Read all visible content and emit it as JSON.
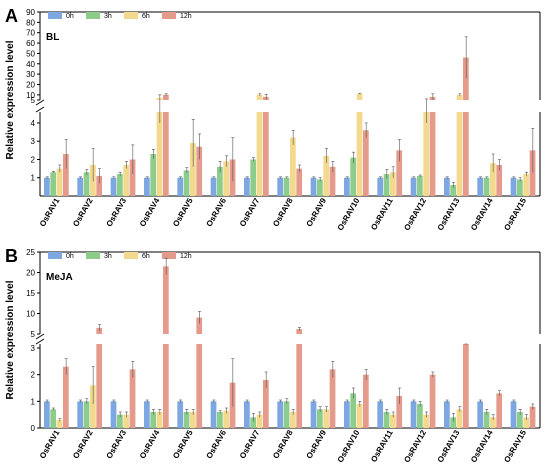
{
  "figure": {
    "colors": {
      "0h": "#7ea6e0",
      "3h": "#8ccd8c",
      "6h": "#f2d98d",
      "12h": "#e59b8c"
    },
    "axis_color": "#000000",
    "grid": false
  },
  "chart_data": [
    {
      "type": "bar",
      "panel_label": "A",
      "condition_label": "BL",
      "ylabel": "Relative expression level",
      "yscale": "broken",
      "ylim": [
        0,
        90
      ],
      "y_ticks_lower": [
        "1",
        "2",
        "3",
        "4"
      ],
      "y_ticks_upper": [
        "5",
        "10",
        "20",
        "30",
        "40",
        "50",
        "60",
        "70",
        "80",
        "90"
      ],
      "legend_position": "top-left",
      "categories": [
        "OsRAV1",
        "OsRAV2",
        "OsRAV3",
        "OsRAV4",
        "OsRAV5",
        "OsRAV6",
        "OsRAV7",
        "OsRAV8",
        "OsRAV9",
        "OsRAV10",
        "OsRAV11",
        "OsRAV12",
        "OsRAV13",
        "OsRAV14",
        "OsRAV15"
      ],
      "series": [
        {
          "name": "0h",
          "values": [
            1,
            1,
            1,
            1,
            1,
            1,
            1,
            1,
            1,
            1,
            1,
            1,
            1,
            1,
            1
          ],
          "errors": [
            0.05,
            0.05,
            0.05,
            0.05,
            0.05,
            0.05,
            0.05,
            0.05,
            0.05,
            0.05,
            0.05,
            0.05,
            0.05,
            0.05,
            0.05
          ]
        },
        {
          "name": "3h",
          "values": [
            1.3,
            1.3,
            1.2,
            2.3,
            1.4,
            1.6,
            2.0,
            1.0,
            0.9,
            2.1,
            1.2,
            1.1,
            0.6,
            1.0,
            0.9
          ],
          "errors": [
            0.05,
            0.15,
            0.1,
            0.25,
            0.15,
            0.3,
            0.1,
            0.05,
            0.1,
            0.3,
            0.25,
            0.05,
            0.15,
            0.05,
            0.1
          ]
        },
        {
          "name": "6h",
          "values": [
            1.5,
            1.7,
            1.7,
            7,
            2.9,
            1.9,
            10,
            3.2,
            2.2,
            11,
            1.3,
            5,
            10,
            1.8,
            1.2
          ],
          "errors": [
            0.2,
            0.9,
            0.2,
            3,
            1.3,
            0.3,
            1,
            0.4,
            0.4,
            0.6,
            0.3,
            1,
            1,
            0.5,
            0.1
          ]
        },
        {
          "name": "12h",
          "values": [
            2.3,
            1.1,
            2.0,
            10,
            2.7,
            2.0,
            8,
            1.5,
            1.6,
            3.6,
            2.5,
            8,
            46,
            1.7,
            2.5
          ],
          "errors": [
            0.8,
            0.4,
            0.8,
            1,
            0.7,
            1.2,
            2.5,
            0.2,
            0.3,
            0.4,
            0.6,
            3,
            20,
            0.3,
            1.2
          ]
        }
      ]
    },
    {
      "type": "bar",
      "panel_label": "B",
      "condition_label": "MeJA",
      "ylabel": "Relative expression level",
      "yscale": "broken",
      "ylim": [
        0,
        25
      ],
      "y_ticks_lower": [
        "0",
        "1",
        "2",
        "3"
      ],
      "y_ticks_upper": [
        "5",
        "10",
        "15",
        "20",
        "25"
      ],
      "legend_position": "top-left",
      "categories": [
        "OsRAV1",
        "OsRAV2",
        "OsRAV3",
        "OsRAV4",
        "OsRAV5",
        "OsRAV6",
        "OsRAV7",
        "OsRAV8",
        "OsRAV9",
        "OsRAV10",
        "OsRAV11",
        "OsRAV12",
        "OsRAV13",
        "OsRAV14",
        "OsRAV15"
      ],
      "series": [
        {
          "name": "0h",
          "values": [
            1,
            1,
            1,
            1,
            1,
            1,
            1,
            1,
            1,
            1,
            1,
            1,
            1,
            1,
            1
          ],
          "errors": [
            0.05,
            0.05,
            0.05,
            0.05,
            0.05,
            0.05,
            0.05,
            0.05,
            0.05,
            0.05,
            0.05,
            0.05,
            0.05,
            0.05,
            0.05
          ]
        },
        {
          "name": "3h",
          "values": [
            0.7,
            1.0,
            0.5,
            0.6,
            0.6,
            0.6,
            0.4,
            1.0,
            0.7,
            1.3,
            0.6,
            0.9,
            0.4,
            0.6,
            0.6
          ],
          "errors": [
            0.05,
            0.1,
            0.1,
            0.1,
            0.1,
            0.05,
            0.15,
            0.1,
            0.1,
            0.2,
            0.1,
            0.1,
            0.15,
            0.1,
            0.1
          ]
        },
        {
          "name": "6h",
          "values": [
            0.3,
            1.6,
            0.5,
            0.6,
            0.6,
            0.65,
            0.5,
            0.6,
            0.7,
            0.9,
            0.5,
            0.5,
            0.7,
            0.4,
            0.4
          ],
          "errors": [
            0.05,
            0.7,
            0.1,
            0.1,
            0.1,
            0.1,
            0.1,
            0.1,
            0.1,
            0.1,
            0.1,
            0.1,
            0.1,
            0.1,
            0.1
          ]
        },
        {
          "name": "12h",
          "values": [
            2.3,
            6.5,
            2.2,
            21.5,
            9,
            1.7,
            1.8,
            6.2,
            2.2,
            2.0,
            1.2,
            2.0,
            4.2,
            1.3,
            0.8
          ],
          "errors": [
            0.3,
            0.8,
            0.3,
            2,
            1.5,
            0.9,
            0.3,
            0.4,
            0.3,
            0.2,
            0.3,
            0.1,
            0.7,
            0.1,
            0.1
          ]
        }
      ]
    }
  ]
}
